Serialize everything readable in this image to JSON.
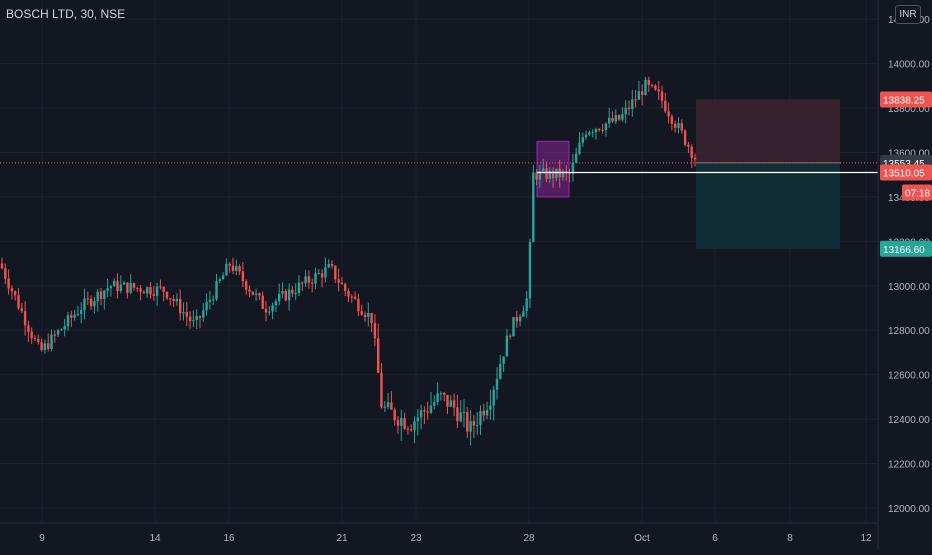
{
  "header": {
    "title": "BOSCH LTD, 30, NSE",
    "currency": "INR"
  },
  "colors": {
    "background": "#131722",
    "up": "#26a69a",
    "down": "#ef5350",
    "grid": "#1e222d",
    "axis_text": "#b2b5be",
    "stop_zone": "#3b2430",
    "target_zone": "#12303a",
    "highlight": "#9c27b0"
  },
  "chart_data": {
    "type": "candlestick",
    "title": "BOSCH LTD, 30, NSE",
    "xlabel": "",
    "ylabel": "",
    "ylim": [
      11900,
      14250
    ],
    "x_ticks": [
      "9",
      "14",
      "16",
      "21",
      "23",
      "28",
      "Oct",
      "6",
      "8",
      "12"
    ],
    "y_ticks": [
      12000,
      12200,
      12400,
      12600,
      12800,
      13000,
      13200,
      13400,
      13600,
      13800,
      14000,
      14200
    ],
    "price_waypoints": [
      {
        "x": "9",
        "price": 13100
      },
      {
        "x": "9",
        "price": 12700
      },
      {
        "x": "14",
        "price": 12950
      },
      {
        "x": "16",
        "price": 13100
      },
      {
        "x": "21",
        "price": 13050
      },
      {
        "x": "21",
        "price": 12450
      },
      {
        "x": "23",
        "price": 12400
      },
      {
        "x": "23",
        "price": 12550
      },
      {
        "x": "28",
        "price": 12900
      },
      {
        "x": "28",
        "price": 13550
      },
      {
        "x": "Oct",
        "price": 13900
      },
      {
        "x": "Oct",
        "price": 13600
      }
    ],
    "price_labels": [
      {
        "text": "13838.25",
        "value": 13838.25,
        "color": "#ef5350"
      },
      {
        "text": "13553.45",
        "value": 13553.45,
        "color": "#363a45"
      },
      {
        "text": "13510.05",
        "value": 13510.05,
        "color": "#ef5350"
      },
      {
        "text": "07:18",
        "value": 13420,
        "color": "#ef5350"
      },
      {
        "text": "13166.60",
        "value": 13166.6,
        "color": "#26a69a"
      }
    ],
    "position_tool": {
      "stop": 13838.25,
      "entry": 13553.45,
      "target": 13166.6
    },
    "last_price": 13510.05,
    "grid": true
  }
}
